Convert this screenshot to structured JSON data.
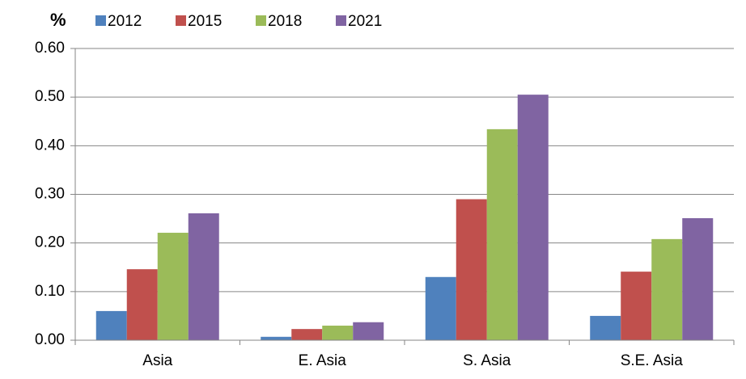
{
  "chart_data": {
    "type": "bar",
    "y_label": "%",
    "categories": [
      "Asia",
      "E. Asia",
      "S. Asia",
      "S.E. Asia"
    ],
    "series": [
      {
        "name": "2012",
        "color": "#4f81bd",
        "values": [
          0.06,
          0.007,
          0.13,
          0.05
        ]
      },
      {
        "name": "2015",
        "color": "#c0504d",
        "values": [
          0.146,
          0.023,
          0.29,
          0.141
        ]
      },
      {
        "name": "2018",
        "color": "#9bbb59",
        "values": [
          0.221,
          0.03,
          0.434,
          0.208
        ]
      },
      {
        "name": "2021",
        "color": "#8064a2",
        "values": [
          0.261,
          0.037,
          0.505,
          0.251
        ]
      }
    ],
    "ylim": [
      0,
      0.6
    ],
    "yticks": [
      {
        "value": 0,
        "label": "0.00"
      },
      {
        "value": 0.1,
        "label": "0.10"
      },
      {
        "value": 0.2,
        "label": "0.20"
      },
      {
        "value": 0.3,
        "label": "0.30"
      },
      {
        "value": 0.4,
        "label": "0.40"
      },
      {
        "value": 0.5,
        "label": "0.50"
      },
      {
        "value": 0.6,
        "label": "0.60"
      }
    ],
    "grid": true,
    "legend": "top"
  }
}
